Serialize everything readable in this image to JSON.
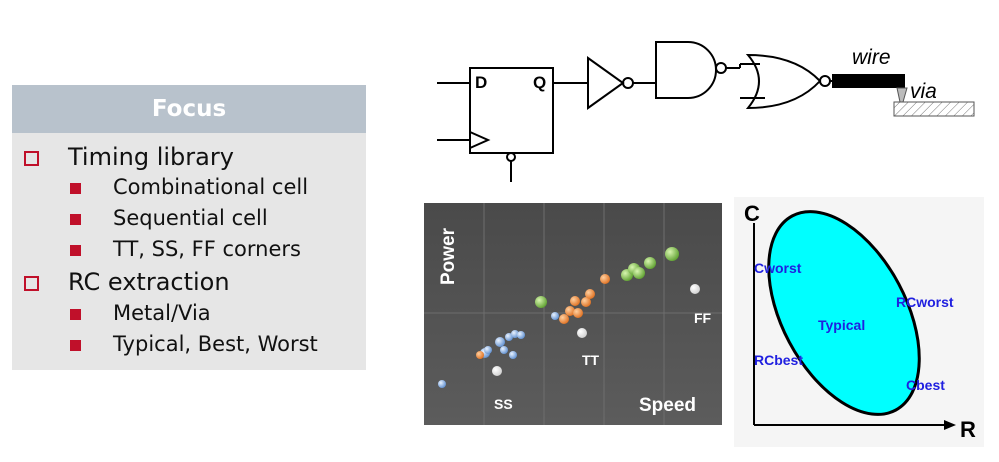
{
  "focus": {
    "title": "Focus",
    "items": [
      {
        "label": "Timing library",
        "subitems": [
          "Combinational cell",
          "Sequential cell",
          "TT, SS, FF corners"
        ]
      },
      {
        "label": "RC extraction",
        "subitems": [
          "Metal/Via",
          "Typical, Best, Worst"
        ]
      }
    ]
  },
  "circuit": {
    "d_label": "D",
    "q_label": "Q",
    "wire_label": "wire",
    "via_label": "via"
  },
  "scatter": {
    "y_label": "Power",
    "x_label": "Speed",
    "labels": {
      "ss": "SS",
      "tt": "TT",
      "ff": "FF"
    }
  },
  "rc_plot": {
    "y_axis": "C",
    "x_axis": "R",
    "labels": {
      "cworst": "Cworst",
      "rcworst": "RCworst",
      "typical": "Typical",
      "rcbest": "RCbest",
      "cbest": "Cbest"
    },
    "label_color": "#2020e0",
    "fill_color": "#00ffff"
  },
  "colors": {
    "bullet": "#c0102a",
    "panel_header": "#b8c2cc",
    "panel_bg": "#e6e6e6",
    "scatter_bg": "#555555",
    "blue_dots": "#7aa8e0",
    "orange_dots": "#f08a30",
    "green_dots": "#74c040",
    "white_dots": "#ffffff"
  }
}
